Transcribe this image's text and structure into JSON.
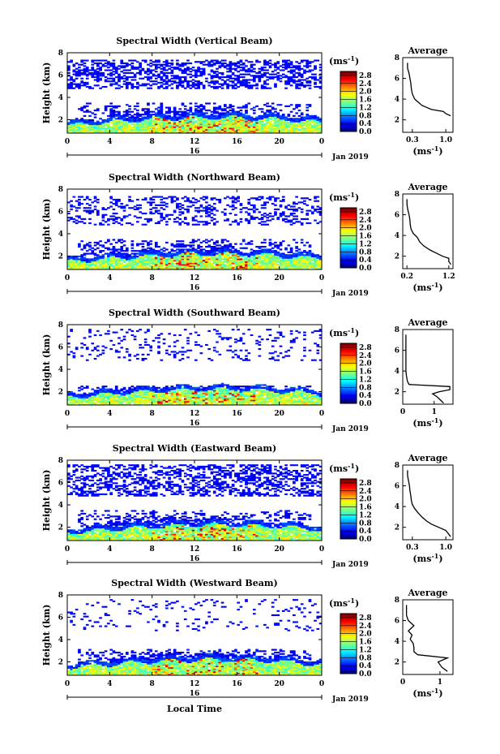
{
  "chart_data": {
    "type": "heatmap",
    "x_label": "Local Time",
    "y_label": "Height (km)",
    "x_ticks": [
      "0",
      "4",
      "8",
      "12",
      "16",
      "20",
      "0"
    ],
    "x_range": [
      0,
      24
    ],
    "y_ticks": [
      "2",
      "4",
      "6",
      "8"
    ],
    "y_range": [
      0.8,
      8
    ],
    "date_label": "16",
    "month_label": "Jan 2019",
    "colorbar_unit": "(ms",
    "colorbar_unit_sup": "-1",
    "colorbar_unit_close": ")",
    "colorbar_ticks": [
      "0.0",
      "0.4",
      "0.8",
      "1.2",
      "1.6",
      "2.0",
      "2.4",
      "2.8"
    ],
    "colorbar_range": [
      0,
      3.0
    ],
    "avg_title": "Average",
    "avg_y_ticks": [
      "2",
      "4",
      "6",
      "8"
    ],
    "panels": [
      {
        "title": "Spectral Width (Vertical Beam)",
        "avg_x_ticks": [
          "0.3",
          "1.0"
        ],
        "avg_xlim": [
          0.1,
          1.15
        ],
        "avg_profile": [
          [
            2.4,
            1.1
          ],
          [
            2.6,
            1.0
          ],
          [
            2.8,
            0.95
          ],
          [
            3.0,
            0.7
          ],
          [
            3.2,
            0.6
          ],
          [
            3.4,
            0.5
          ],
          [
            3.6,
            0.45
          ],
          [
            3.8,
            0.4
          ],
          [
            4.0,
            0.35
          ],
          [
            4.2,
            0.33
          ],
          [
            4.5,
            0.3
          ],
          [
            5.0,
            0.28
          ],
          [
            5.5,
            0.27
          ],
          [
            6.0,
            0.25
          ],
          [
            6.5,
            0.23
          ],
          [
            7.0,
            0.2
          ],
          [
            7.5,
            0.2
          ]
        ],
        "cloud_top_low": 3.5,
        "cloud_top_high": 7.4,
        "high_density": 0.6
      },
      {
        "title": "Spectral Width (Northward Beam)",
        "avg_x_ticks": [
          "0.2",
          "1.2"
        ],
        "avg_xlim": [
          0.1,
          1.3
        ],
        "avg_profile": [
          [
            1.2,
            1.25
          ],
          [
            1.5,
            1.2
          ],
          [
            1.8,
            1.2
          ],
          [
            2.0,
            1.05
          ],
          [
            2.3,
            0.9
          ],
          [
            2.6,
            0.75
          ],
          [
            3.0,
            0.6
          ],
          [
            3.4,
            0.5
          ],
          [
            3.8,
            0.45
          ],
          [
            4.2,
            0.35
          ],
          [
            4.6,
            0.3
          ],
          [
            5.0,
            0.28
          ],
          [
            5.5,
            0.27
          ],
          [
            6.0,
            0.25
          ],
          [
            6.5,
            0.22
          ],
          [
            7.0,
            0.2
          ],
          [
            7.5,
            0.2
          ]
        ],
        "cloud_top_low": 3.5,
        "cloud_top_high": 7.4,
        "high_density": 0.35
      },
      {
        "title": "Spectral Width (Southward Beam)",
        "avg_x_ticks": [
          "0",
          "1"
        ],
        "avg_xlim": [
          0,
          1.6
        ],
        "avg_profile": [
          [
            0.9,
            1.3
          ],
          [
            1.2,
            1.2
          ],
          [
            1.5,
            1.1
          ],
          [
            1.8,
            0.95
          ],
          [
            2.0,
            1.15
          ],
          [
            2.2,
            1.5
          ],
          [
            2.5,
            1.5
          ],
          [
            2.7,
            0.2
          ],
          [
            3.0,
            0.15
          ],
          [
            3.5,
            0.12
          ],
          [
            4.0,
            0.1
          ],
          [
            5.0,
            0.1
          ],
          [
            6.0,
            0.1
          ],
          [
            7.0,
            0.1
          ],
          [
            7.5,
            0.1
          ]
        ],
        "cloud_top_low": 2.6,
        "cloud_top_high": 7.6,
        "high_density": 0.15
      },
      {
        "title": "Spectral Width (Eastward Beam)",
        "avg_x_ticks": [
          "0.3",
          "1.0"
        ],
        "avg_xlim": [
          0.1,
          1.15
        ],
        "avg_profile": [
          [
            1.1,
            1.1
          ],
          [
            1.4,
            1.05
          ],
          [
            1.7,
            1.0
          ],
          [
            2.0,
            0.85
          ],
          [
            2.3,
            0.7
          ],
          [
            2.6,
            0.6
          ],
          [
            3.0,
            0.5
          ],
          [
            3.4,
            0.42
          ],
          [
            3.8,
            0.35
          ],
          [
            4.2,
            0.3
          ],
          [
            4.6,
            0.28
          ],
          [
            5.0,
            0.27
          ],
          [
            5.5,
            0.25
          ],
          [
            6.0,
            0.24
          ],
          [
            6.5,
            0.22
          ],
          [
            7.0,
            0.2
          ],
          [
            7.5,
            0.2
          ]
        ],
        "cloud_top_low": 3.5,
        "cloud_top_high": 7.6,
        "high_density": 0.55
      },
      {
        "title": "Spectral Width (Westward Beam)",
        "avg_x_ticks": [
          "0",
          "1"
        ],
        "avg_xlim": [
          0,
          1.35
        ],
        "avg_profile": [
          [
            1.1,
            1.2
          ],
          [
            1.5,
            1.05
          ],
          [
            2.0,
            0.95
          ],
          [
            2.4,
            1.2
          ],
          [
            2.7,
            0.4
          ],
          [
            3.0,
            0.3
          ],
          [
            3.4,
            0.3
          ],
          [
            3.8,
            0.28
          ],
          [
            4.2,
            0.2
          ],
          [
            4.6,
            0.25
          ],
          [
            5.0,
            0.15
          ],
          [
            5.5,
            0.3
          ],
          [
            6.0,
            0.15
          ],
          [
            6.5,
            0.1
          ],
          [
            7.0,
            0.1
          ],
          [
            7.5,
            0.1
          ]
        ],
        "cloud_top_low": 3.2,
        "cloud_top_high": 7.6,
        "high_density": 0.1
      }
    ]
  }
}
